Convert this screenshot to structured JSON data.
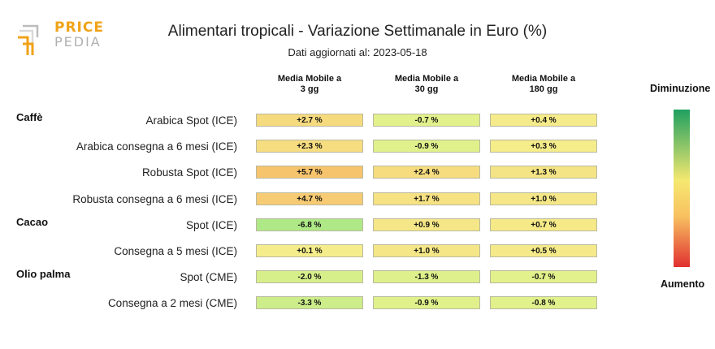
{
  "logo": {
    "word1": "PRICE",
    "word2": "PEDIA"
  },
  "title": "Alimentari tropicali - Variazione Settimanale in Euro (%)",
  "subtitle": "Dati aggiornati al: 2023-05-18",
  "legend": {
    "top": "Diminuzione",
    "bottom": "Aumento",
    "gradient": [
      "#1fa060",
      "#f5e870",
      "#f8c060",
      "#e03030"
    ]
  },
  "chart_data": {
    "type": "table",
    "columns": [
      {
        "line1": "Media Mobile a",
        "line2": "3 gg"
      },
      {
        "line1": "Media Mobile a",
        "line2": "30 gg"
      },
      {
        "line1": "Media Mobile a",
        "line2": "180 gg"
      }
    ],
    "rows": [
      {
        "group": "Caffè",
        "label": "Arabica Spot (ICE)",
        "values": [
          2.7,
          -0.7,
          0.4
        ],
        "texts": [
          "+2.7 %",
          "-0.7 %",
          "+0.4 %"
        ]
      },
      {
        "group": "",
        "label": "Arabica consegna a 6 mesi (ICE)",
        "values": [
          2.3,
          -0.9,
          0.3
        ],
        "texts": [
          "+2.3 %",
          "-0.9 %",
          "+0.3 %"
        ]
      },
      {
        "group": "",
        "label": "Robusta Spot (ICE)",
        "values": [
          5.7,
          2.4,
          1.3
        ],
        "texts": [
          "+5.7 %",
          "+2.4 %",
          "+1.3 %"
        ]
      },
      {
        "group": "",
        "label": "Robusta consegna a 6 mesi (ICE)",
        "values": [
          4.7,
          1.7,
          1.0
        ],
        "texts": [
          "+4.7 %",
          "+1.7 %",
          "+1.0 %"
        ]
      },
      {
        "group": "Cacao",
        "label": "Spot (ICE)",
        "values": [
          -6.8,
          0.9,
          0.7
        ],
        "texts": [
          "-6.8 %",
          "+0.9 %",
          "+0.7 %"
        ]
      },
      {
        "group": "",
        "label": "Consegna a 5 mesi (ICE)",
        "values": [
          0.1,
          1.0,
          0.5
        ],
        "texts": [
          "+0.1 %",
          "+1.0 %",
          "+0.5 %"
        ]
      },
      {
        "group": "Olio palma",
        "label": "Spot (CME)",
        "values": [
          -2.0,
          -1.3,
          -0.7
        ],
        "texts": [
          "-2.0 %",
          "-1.3 %",
          "-0.7 %"
        ]
      },
      {
        "group": "",
        "label": "Consegna a 2 mesi (CME)",
        "values": [
          -3.3,
          -0.9,
          -0.8
        ],
        "texts": [
          "-3.3 %",
          "-0.9 %",
          "-0.8 %"
        ]
      }
    ]
  }
}
